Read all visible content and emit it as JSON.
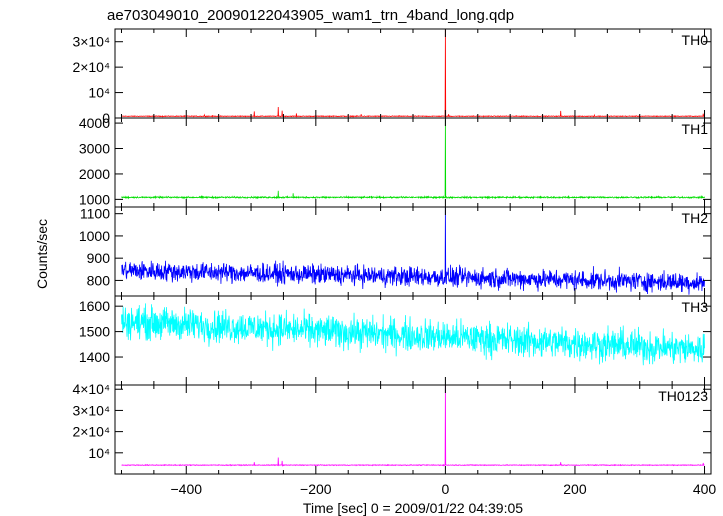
{
  "chart_data": {
    "type": "line",
    "title": "ae703049010_20090122043905_wam1_trn_4band_long.qdp",
    "xlabel": "Time [sec] 0 = 2009/01/22 04:39:05",
    "ylabel": "Counts/sec",
    "xlim": [
      -510,
      410
    ],
    "x_ticks": [
      -400,
      -200,
      0,
      200,
      400
    ],
    "x_tick_labels": [
      "−400",
      "−200",
      "0",
      "200",
      "400"
    ],
    "grid": false,
    "panels": [
      {
        "name": "TH0",
        "color": "#ff0000",
        "ylim": [
          0,
          35000
        ],
        "ticks": [
          0,
          10000,
          20000,
          30000
        ],
        "tick_labels": [
          "0",
          "10⁴",
          "2×10⁴",
          "3×10⁴"
        ],
        "baseline": 700,
        "noise": 120,
        "trend": 0,
        "spikes": [
          {
            "t": -372,
            "v": 1200
          },
          {
            "t": -295,
            "v": 2600
          },
          {
            "t": -258,
            "v": 4300
          },
          {
            "t": -252,
            "v": 2900
          },
          {
            "t": -230,
            "v": 1800
          },
          {
            "t": -130,
            "v": 1500
          },
          {
            "t": 0,
            "v": 35000
          },
          {
            "t": 5,
            "v": 1500
          },
          {
            "t": 178,
            "v": 2800
          },
          {
            "t": 230,
            "v": 1100
          },
          {
            "t": 398,
            "v": 1700
          }
        ]
      },
      {
        "name": "TH1",
        "color": "#00dd00",
        "ylim": [
          700,
          4200
        ],
        "ticks": [
          1000,
          2000,
          3000,
          4000
        ],
        "tick_labels": [
          "1000",
          "2000",
          "3000",
          "4000"
        ],
        "baseline": 1080,
        "noise": 25,
        "trend": 0,
        "spikes": [
          {
            "t": -258,
            "v": 1340
          },
          {
            "t": -235,
            "v": 1240
          },
          {
            "t": 0,
            "v": 4200
          }
        ]
      },
      {
        "name": "TH2",
        "color": "#0000ff",
        "ylim": [
          730,
          1130
        ],
        "ticks": [
          800,
          900,
          1000,
          1100
        ],
        "tick_labels": [
          "800",
          "900",
          "1000",
          "1100"
        ],
        "baseline": 845,
        "noise": 38,
        "trend": -55,
        "spikes": [
          {
            "t": 0,
            "v": 1130
          }
        ]
      },
      {
        "name": "TH3",
        "color": "#00ffff",
        "ylim": [
          1290,
          1640
        ],
        "ticks": [
          1400,
          1500,
          1600
        ],
        "tick_labels": [
          "1400",
          "1500",
          "1600"
        ],
        "baseline": 1540,
        "noise": 55,
        "trend": -110,
        "spikes": []
      },
      {
        "name": "TH0123",
        "color": "#ff00ff",
        "ylim": [
          0,
          42000
        ],
        "ticks": [
          10000,
          20000,
          30000,
          40000
        ],
        "tick_labels": [
          "10⁴",
          "2×10⁴",
          "3×10⁴",
          "4×10⁴"
        ],
        "baseline": 4200,
        "noise": 150,
        "trend": 0,
        "spikes": [
          {
            "t": -295,
            "v": 5600
          },
          {
            "t": -258,
            "v": 7800
          },
          {
            "t": -252,
            "v": 6200
          },
          {
            "t": 0,
            "v": 42000
          },
          {
            "t": 178,
            "v": 5600
          },
          {
            "t": 398,
            "v": 5200
          }
        ]
      }
    ]
  }
}
